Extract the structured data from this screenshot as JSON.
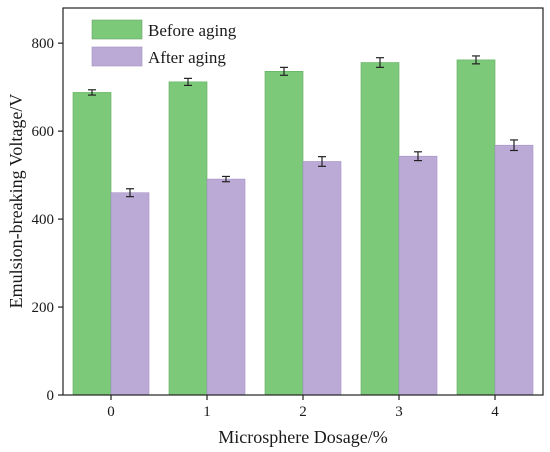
{
  "chart_data": {
    "type": "bar",
    "xlabel": "Microsphere Dosage/%",
    "ylabel": "Emulsion-breaking Voltage/V",
    "categories": [
      "0",
      "1",
      "2",
      "3",
      "4"
    ],
    "ylim": [
      0,
      880
    ],
    "yticks": [
      0,
      200,
      400,
      600,
      800
    ],
    "grid": false,
    "legend_position": "top-left",
    "series": [
      {
        "name": "Before aging",
        "color": "#7dc97a",
        "values": [
          688,
          712,
          736,
          756,
          762
        ],
        "errors": [
          6,
          8,
          9,
          11,
          9
        ]
      },
      {
        "name": "After aging",
        "color": "#bcaad6",
        "values": [
          460,
          491,
          531,
          543,
          568
        ],
        "errors": [
          9,
          6,
          11,
          10,
          12
        ]
      }
    ]
  }
}
